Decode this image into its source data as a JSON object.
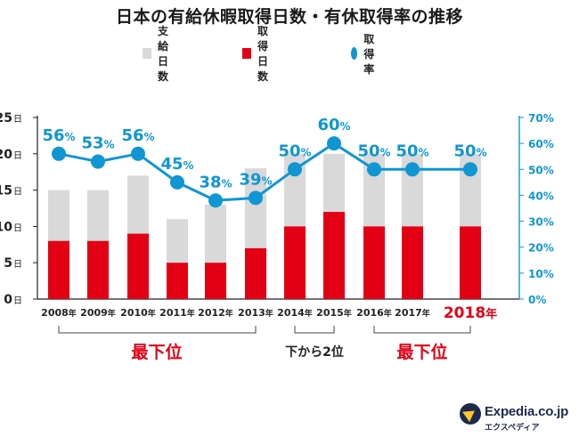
{
  "title": "日本の有給休暇取得日数・有休取得率の推移",
  "legend": {
    "granted_label": "支給日数",
    "taken_label": "取得日数",
    "rate_label": "取得率"
  },
  "colors": {
    "granted": "#d9d9d9",
    "taken": "#e30014",
    "rate": "#0f96d3",
    "highlight": "#e30014",
    "axis_right": "#0f96d3"
  },
  "chart_data": {
    "type": "bar",
    "categories": [
      "2008",
      "2009",
      "2010",
      "2011",
      "2012",
      "2013",
      "2014",
      "2015",
      "2016",
      "2017",
      "2018"
    ],
    "year_suffix": "年",
    "series": [
      {
        "name": "支給日数",
        "values": [
          15,
          15,
          17,
          11,
          13,
          18,
          20,
          20,
          20,
          20,
          20
        ]
      },
      {
        "name": "取得日数",
        "values": [
          8,
          8,
          9,
          5,
          5,
          7,
          10,
          12,
          10,
          10,
          10
        ]
      },
      {
        "name": "取得率",
        "values": [
          56,
          53,
          56,
          45,
          38,
          39,
          50,
          60,
          50,
          50,
          50
        ]
      }
    ],
    "rate_labels": [
      "56",
      "53",
      "56",
      "45",
      "38",
      "39",
      "50",
      "60",
      "50",
      "50",
      "50"
    ],
    "percent_sign": "%",
    "left_axis": {
      "ticks": [
        "0",
        "5",
        "10",
        "15",
        "20",
        "25"
      ],
      "unit": "日",
      "ylim": [
        0,
        25
      ]
    },
    "right_axis": {
      "ticks": [
        "0%",
        "10%",
        "20%",
        "30%",
        "40%",
        "50%",
        "60%",
        "70%"
      ],
      "ylim": [
        0,
        70
      ]
    },
    "highlight_category": "2018",
    "grid": false,
    "legend_position": "top"
  },
  "annotations": {
    "bracket_left_label": "最下位",
    "bracket_middle_label": "下から2位",
    "bracket_right_label": "最下位"
  },
  "logo": {
    "brand": "Expedia.co.jp",
    "kana": "エクスペディア"
  }
}
